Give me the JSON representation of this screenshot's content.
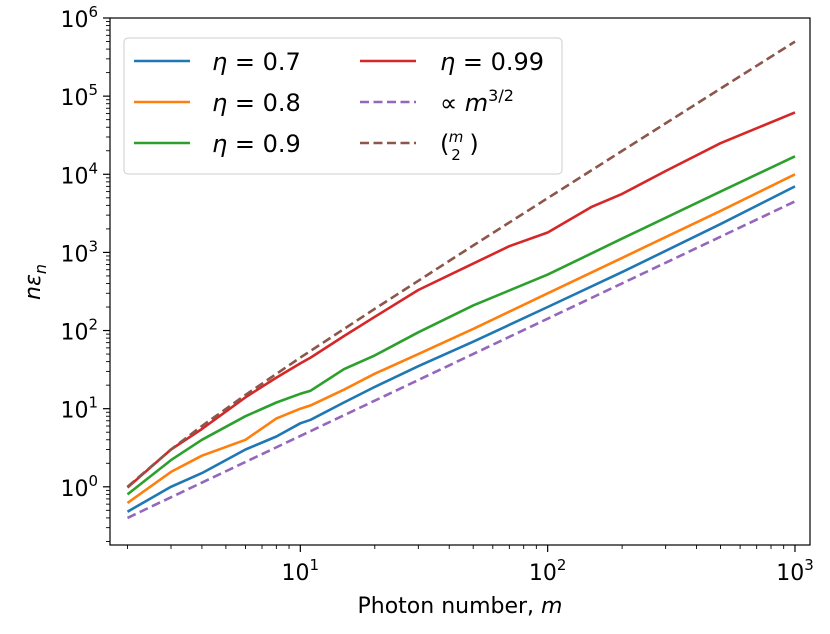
{
  "chart_data": {
    "type": "line",
    "title": "",
    "xlabel": "Photon number, m",
    "ylabel": "nε_n",
    "xscale": "log",
    "yscale": "log",
    "xlim": [
      1.7,
      1150
    ],
    "ylim": [
      0.18,
      1000000
    ],
    "x_ticks": [
      {
        "value": 10,
        "base": "10",
        "exp": "1"
      },
      {
        "value": 100,
        "base": "10",
        "exp": "2"
      },
      {
        "value": 1000,
        "base": "10",
        "exp": "3"
      }
    ],
    "y_ticks": [
      {
        "value": 1,
        "base": "10",
        "exp": "0"
      },
      {
        "value": 10,
        "base": "10",
        "exp": "1"
      },
      {
        "value": 100,
        "base": "10",
        "exp": "2"
      },
      {
        "value": 1000,
        "base": "10",
        "exp": "3"
      },
      {
        "value": 10000,
        "base": "10",
        "exp": "4"
      },
      {
        "value": 100000,
        "base": "10",
        "exp": "5"
      },
      {
        "value": 1000000,
        "base": "10",
        "exp": "6"
      }
    ],
    "grid": false,
    "legend_position": "top-left",
    "legend_columns": 2,
    "series": [
      {
        "name": "η = 0.7",
        "color": "#1f77b4",
        "style": "solid",
        "x": [
          2,
          3,
          4,
          6,
          8,
          10,
          11,
          15,
          20,
          30,
          50,
          100,
          200,
          500,
          1000
        ],
        "y": [
          0.48,
          1.0,
          1.5,
          3.0,
          4.4,
          6.5,
          7.2,
          12,
          19,
          35,
          72,
          200,
          560,
          2300,
          7000
        ]
      },
      {
        "name": "η = 0.8",
        "color": "#ff7f0e",
        "style": "solid",
        "x": [
          2,
          3,
          4,
          6,
          8,
          10,
          11,
          15,
          20,
          30,
          50,
          100,
          200,
          500,
          1000
        ],
        "y": [
          0.62,
          1.55,
          2.5,
          4.0,
          7.5,
          10,
          11,
          17.5,
          28,
          50,
          105,
          300,
          850,
          3400,
          10000
        ]
      },
      {
        "name": "η = 0.9",
        "color": "#2ca02c",
        "style": "solid",
        "x": [
          2,
          3,
          4,
          6,
          8,
          10,
          11,
          15,
          20,
          30,
          50,
          100,
          200,
          500,
          1000
        ],
        "y": [
          0.8,
          2.2,
          4.0,
          8.0,
          12,
          15.5,
          17,
          32,
          48,
          95,
          210,
          520,
          1500,
          6000,
          17000
        ]
      },
      {
        "name": "η = 0.99",
        "color": "#d62728",
        "style": "solid",
        "x": [
          2,
          3,
          4,
          6,
          8,
          10,
          11,
          15,
          20,
          30,
          50,
          70,
          100,
          150,
          200,
          300,
          500,
          1000
        ],
        "y": [
          0.98,
          3.0,
          5.5,
          14,
          25,
          38,
          45,
          85,
          150,
          330,
          720,
          1200,
          1800,
          3800,
          5600,
          11000,
          25000,
          62000
        ]
      },
      {
        "name": "∝ m^{3/2}",
        "color": "#9467bd",
        "style": "dashed",
        "x": [
          2,
          1000
        ],
        "y": [
          0.4,
          4500
        ]
      },
      {
        "name": "(m choose 2)",
        "color": "#8c564b",
        "style": "dashed",
        "x": [
          2,
          3,
          4,
          6,
          10,
          20,
          50,
          100,
          200,
          500,
          1000
        ],
        "y": [
          1,
          3,
          6,
          15,
          45,
          190,
          1225,
          4950,
          19900,
          124750,
          499500
        ]
      }
    ],
    "legend": [
      {
        "label": "η = 0.7",
        "color": "#1f77b4",
        "style": "solid"
      },
      {
        "label": "η = 0.8",
        "color": "#ff7f0e",
        "style": "solid"
      },
      {
        "label": "η = 0.9",
        "color": "#2ca02c",
        "style": "solid"
      },
      {
        "label": "η = 0.99",
        "color": "#d62728",
        "style": "solid"
      },
      {
        "label": "∝ m^{3/2}",
        "color": "#9467bd",
        "style": "dashed"
      },
      {
        "label": "(m choose 2)",
        "color": "#8c564b",
        "style": "dashed"
      }
    ]
  }
}
